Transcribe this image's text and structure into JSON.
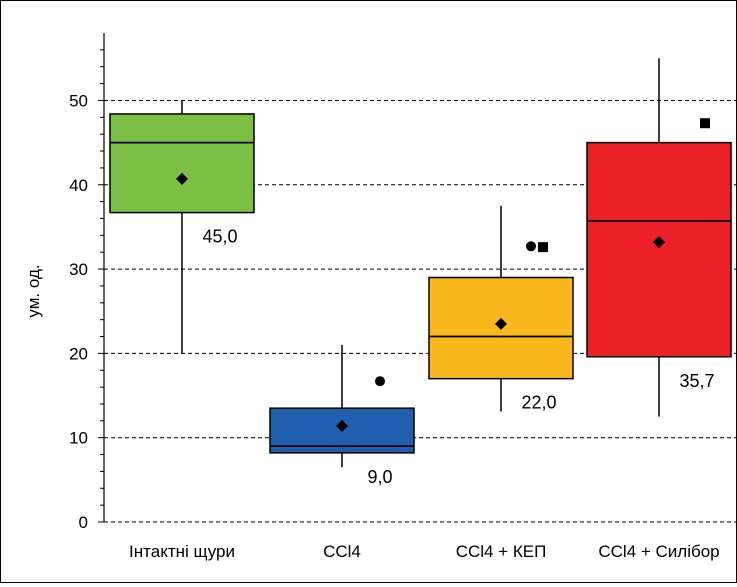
{
  "chart_data": {
    "type": "boxplot",
    "title": "",
    "xlabel": "",
    "ylabel": "ум. од.",
    "ylim": [
      0,
      58
    ],
    "yticks": [
      0,
      10,
      20,
      30,
      40,
      50
    ],
    "grid": "horizontal dashed",
    "legend": "none",
    "categories": [
      "Інтактні щури",
      "CCl4",
      "CCl4 + КЕП",
      "CCl4 + Силібор"
    ],
    "boxes": [
      {
        "category": "Інтактні щури",
        "color": "#7bbf44",
        "whisker_low": 20,
        "q1": 36.7,
        "median": 45.0,
        "q3": 48.4,
        "whisker_high": 50,
        "mean": 40.7,
        "median_label": "45,0",
        "outliers": [],
        "extremes": []
      },
      {
        "category": "CCl4",
        "color": "#1f5fad",
        "whisker_low": 6.5,
        "q1": 8.2,
        "median": 9.0,
        "q3": 13.5,
        "whisker_high": 21,
        "mean": 11.4,
        "median_label": "9,0",
        "outliers": [
          16.7
        ],
        "extremes": []
      },
      {
        "category": "CCl4 + КЕП",
        "color": "#f9b71b",
        "whisker_low": 13.1,
        "q1": 17.0,
        "median": 22.0,
        "q3": 29.0,
        "whisker_high": 37.5,
        "mean": 23.5,
        "median_label": "22,0",
        "outliers": [
          32.7
        ],
        "extremes": [
          32.6
        ]
      },
      {
        "category": "CCl4 + Силібор",
        "color": "#ec2027",
        "whisker_low": 12.5,
        "q1": 19.6,
        "median": 35.7,
        "q3": 45.0,
        "whisker_high": 55.0,
        "mean": 33.2,
        "median_label": "35,7",
        "outliers": [],
        "extremes": [
          47.3
        ]
      }
    ]
  }
}
